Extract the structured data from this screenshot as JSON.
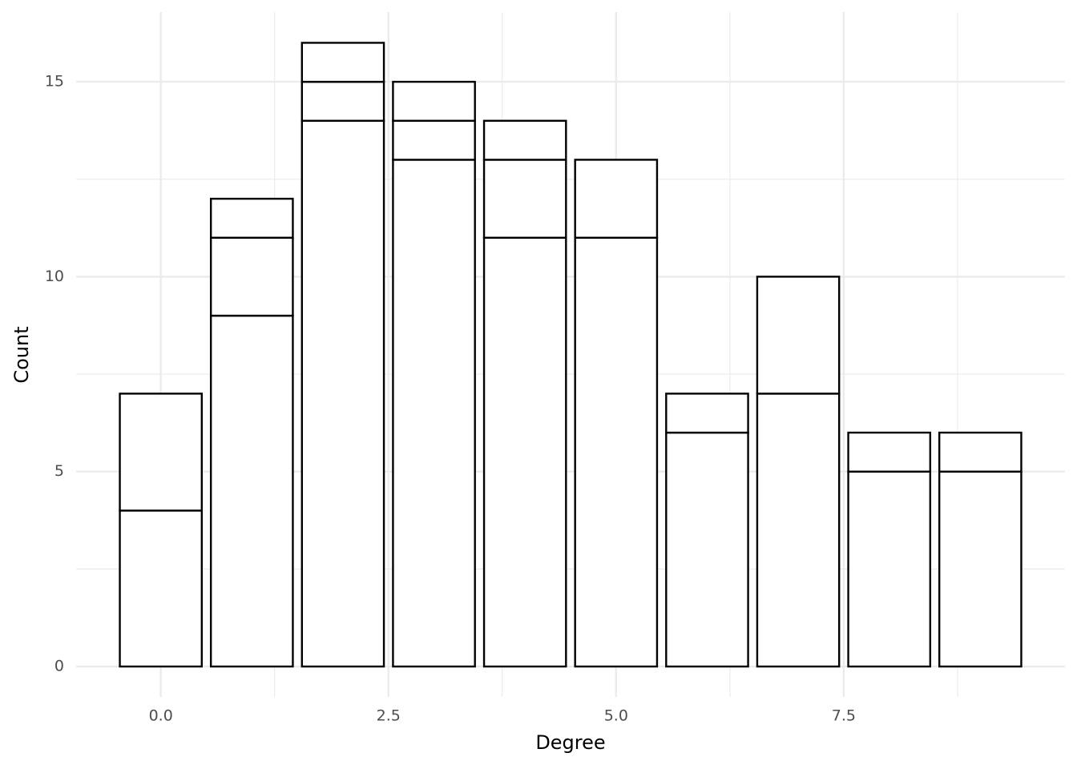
{
  "chart_data": {
    "type": "stacked_bar",
    "x_label": "Degree",
    "y_label": "Count",
    "x": [
      0,
      1,
      2,
      3,
      4,
      5,
      6,
      7,
      8,
      9
    ],
    "series": [
      {
        "color": "#ffffff",
        "values": [
          4,
          9,
          14,
          13,
          11,
          11,
          6,
          7,
          5,
          5
        ]
      },
      {
        "color": "#ffffff",
        "values": [
          3,
          2,
          1,
          1,
          2,
          2,
          1,
          3,
          1,
          1
        ]
      },
      {
        "color": "#ffffff",
        "values": [
          null,
          1,
          1,
          1,
          1,
          null,
          null,
          null,
          null,
          null
        ]
      }
    ],
    "bar_width": 0.9,
    "xlim": [
      -0.93,
      9.93
    ],
    "xticks": [
      {
        "value": 0,
        "label": "0.0"
      },
      {
        "value": 2.5,
        "label": "2.5"
      },
      {
        "value": 5,
        "label": "5.0"
      },
      {
        "value": 7.5,
        "label": "7.5"
      }
    ],
    "x_minor_ticks": [
      1.25,
      3.75,
      6.25,
      8.75
    ],
    "ylim": [
      -0.78,
      16.79
    ],
    "yticks": [
      0,
      5,
      10,
      15
    ],
    "y_minor_ticks": [
      2.5,
      7.5,
      12.5
    ],
    "grid": true
  }
}
